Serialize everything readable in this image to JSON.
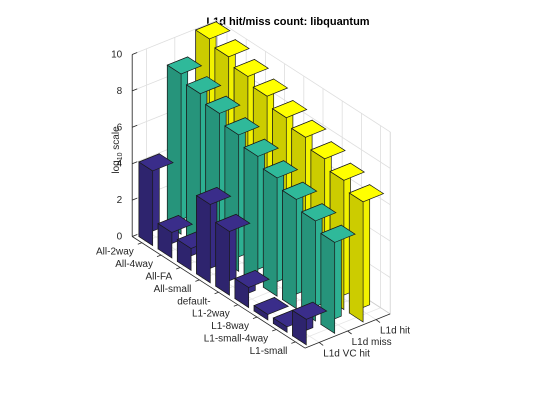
{
  "chart_data": {
    "type": "bar3",
    "title": "L1d hit/miss count: libquantum",
    "zlabel": {
      "prefix": "log",
      "sub": "10",
      "suffix": " scale"
    },
    "zlim": [
      0,
      10
    ],
    "zticks": [
      0,
      2,
      4,
      6,
      8,
      10
    ],
    "categories": [
      "All-2way",
      "All-4way",
      "All-FA",
      "All-small",
      "default-",
      "L1-2way",
      "L1-8way",
      "L1-small-4way",
      "L1-small"
    ],
    "series": [
      {
        "name": "L1d VC hit",
        "color": "#3a2d8a",
        "values": [
          4.1,
          1.4,
          1.2,
          4.3,
          3.5,
          1.1,
          0.3,
          0.3,
          1.4
        ]
      },
      {
        "name": "L1d miss",
        "color": "#2fb99a",
        "values": [
          8.8,
          8.4,
          8.0,
          7.5,
          7.0,
          6.5,
          6.0,
          5.5,
          5.0
        ]
      },
      {
        "name": "L1d hit",
        "color": "#ffff00",
        "values": [
          10.1,
          9.8,
          9.4,
          9.0,
          8.5,
          8.1,
          7.6,
          7.1,
          6.6
        ]
      }
    ],
    "grid": true
  }
}
